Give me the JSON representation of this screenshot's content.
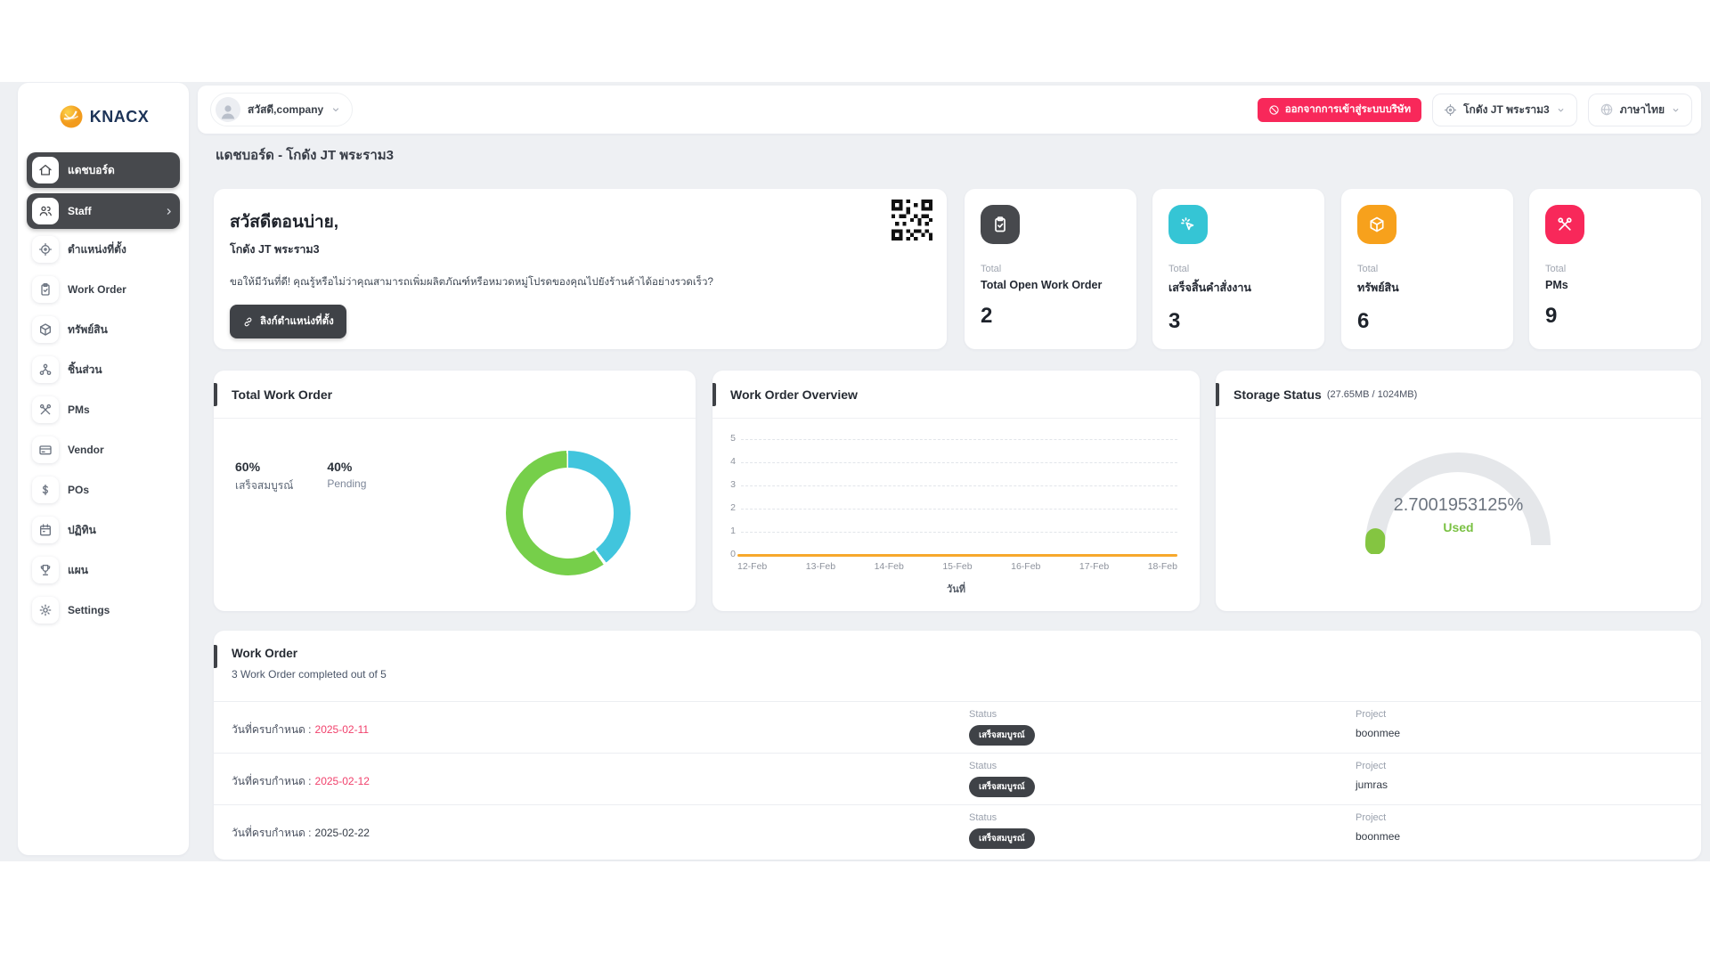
{
  "brand": {
    "name": "KNACX"
  },
  "sidebar": {
    "items": [
      {
        "label": "แดชบอร์ด",
        "icon": "home-icon",
        "active": true
      },
      {
        "label": "Staff",
        "icon": "users-icon",
        "active": true
      },
      {
        "label": "ตำแหน่งที่ตั้ง",
        "icon": "location-icon"
      },
      {
        "label": "Work Order",
        "icon": "clipboard-icon"
      },
      {
        "label": "ทรัพย์สิน",
        "icon": "cube-icon"
      },
      {
        "label": "ชิ้นส่วน",
        "icon": "parts-icon"
      },
      {
        "label": "PMs",
        "icon": "tools-icon"
      },
      {
        "label": "Vendor",
        "icon": "credit-card-icon"
      },
      {
        "label": "POs",
        "icon": "dollar-icon"
      },
      {
        "label": "ปฏิทิน",
        "icon": "calendar-icon"
      },
      {
        "label": "แผน",
        "icon": "trophy-icon"
      },
      {
        "label": "Settings",
        "icon": "gear-icon"
      }
    ]
  },
  "header": {
    "user_greeting": "สวัสดี,company",
    "logout_button": "ออกจากการเข้าสู่ระบบบริษัท",
    "location_selector": "โกดัง JT พระราม3",
    "language_selector": "ภาษาไทย"
  },
  "page": {
    "title": "แดชบอร์ด - โกดัง JT พระราม3"
  },
  "welcome": {
    "greeting": "สวัสดีตอนบ่าย,",
    "location": "โกดัง JT พระราม3",
    "message": "ขอให้มีวันที่ดี! คุณรู้หรือไม่ว่าคุณสามารถเพิ่มผลิตภัณฑ์หรือหมวดหมู่โปรดของคุณไปยังร้านค้าได้อย่างรวดเร็ว?",
    "link_button": "ลิงก์ตำแหน่งที่ตั้ง"
  },
  "stats": [
    {
      "label": "Total",
      "name": "Total Open Work Order",
      "value": "2",
      "color": "#47494d",
      "icon": "clipboard-check-icon"
    },
    {
      "label": "Total",
      "name": "เสร็จสิ้นคำสั่งงาน",
      "value": "3",
      "color": "#35c5d5",
      "icon": "spark-icon"
    },
    {
      "label": "Total",
      "name": "ทรัพย์สิน",
      "value": "6",
      "color": "#f7a11c",
      "icon": "cube-icon"
    },
    {
      "label": "Total",
      "name": "PMs",
      "value": "9",
      "color": "#f8285a",
      "icon": "tools-icon"
    }
  ],
  "chart_data": [
    {
      "type": "pie",
      "donut": true,
      "title": "Total Work Order",
      "series": [
        {
          "name": "เสร็จสมบูรณ์",
          "value": 60,
          "color": "#76cf4a"
        },
        {
          "name": "Pending",
          "value": 40,
          "color": "#41c5dd"
        }
      ],
      "legend": [
        {
          "pct": "60%",
          "label": "เสร็จสมบูรณ์"
        },
        {
          "pct": "40%",
          "label": "Pending"
        }
      ],
      "legend_position": "left"
    },
    {
      "type": "line",
      "title": "Work Order Overview",
      "x": [
        "12-Feb",
        "13-Feb",
        "14-Feb",
        "15-Feb",
        "16-Feb",
        "17-Feb",
        "18-Feb"
      ],
      "series": [
        {
          "name": "Work Order",
          "values": [
            0,
            0,
            0,
            0,
            0,
            0,
            0
          ],
          "color": "#f7a82c"
        }
      ],
      "yticks": [
        5,
        4,
        3,
        2,
        1,
        0
      ],
      "ylim": [
        0,
        5
      ],
      "xlabel": "วันที่",
      "grid": "dashed"
    },
    {
      "type": "gauge",
      "title": "Storage Status",
      "subtitle": "(27.65MB / 1024MB)",
      "used_mb": "27.65MB",
      "total_mb": "1024MB",
      "value_pct": 2.7001953125,
      "value_label": "2.7001953125%",
      "used_label": "Used",
      "color": "#84c541",
      "track_color": "#e5e7ea"
    }
  ],
  "work_order_section": {
    "title": "Work Order",
    "subtitle": "3 Work Order completed out of 5",
    "rows": [
      {
        "due_label": "วันที่ครบกำหนด :",
        "due_date": "2025-02-11",
        "status_label": "Status",
        "status": "เสร็จสมบูรณ์",
        "project_label": "Project",
        "project": "boonmee"
      },
      {
        "due_label": "วันที่ครบกำหนด :",
        "due_date": "2025-02-12",
        "status_label": "Status",
        "status": "เสร็จสมบูรณ์",
        "project_label": "Project",
        "project": "jumras"
      },
      {
        "due_label": "วันที่ครบกำหนด :",
        "due_date": "2025-02-22",
        "status_label": "Status",
        "status": "เสร็จสมบูรณ์",
        "project_label": "Project",
        "project": "boonmee"
      }
    ]
  }
}
